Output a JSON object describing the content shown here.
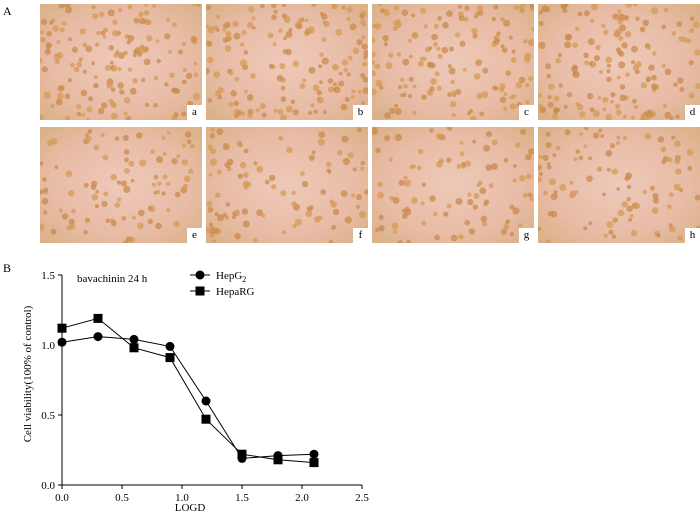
{
  "figure": {
    "panel_a_label": "A",
    "panel_b_label": "B",
    "micrographs": [
      {
        "label": "a"
      },
      {
        "label": "b"
      },
      {
        "label": "c"
      },
      {
        "label": "d"
      },
      {
        "label": "e"
      },
      {
        "label": "f"
      },
      {
        "label": "g"
      },
      {
        "label": "h"
      }
    ]
  },
  "chart_data": {
    "type": "line",
    "annotation": "bavachinin 24 h",
    "xlabel": "LOGD",
    "ylabel": "Cell viability(100% of control)",
    "xlim": [
      0,
      2.5
    ],
    "ylim": [
      0,
      1.5
    ],
    "xticks": [
      "0.0",
      "0.5",
      "1.0",
      "1.5",
      "2.0",
      "2.5"
    ],
    "yticks": [
      "0.0",
      "0.5",
      "1.0",
      "1.5"
    ],
    "x": [
      0,
      0.3,
      0.6,
      0.9,
      1.2,
      1.5,
      1.8,
      2.1
    ],
    "series": [
      {
        "name": "HepG",
        "name_sub": "2",
        "marker": "circle",
        "values": [
          1.02,
          1.06,
          1.04,
          0.99,
          0.6,
          0.19,
          0.21,
          0.22
        ]
      },
      {
        "name": "HepaRG",
        "marker": "square",
        "values": [
          1.12,
          1.19,
          0.98,
          0.91,
          0.47,
          0.22,
          0.18,
          0.16
        ]
      }
    ],
    "grid": false,
    "legend_position": "top"
  }
}
